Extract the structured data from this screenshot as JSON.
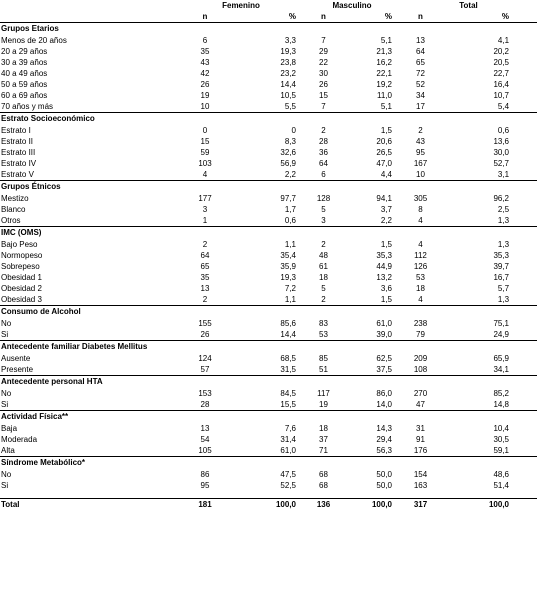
{
  "columns": {
    "groups": [
      "Femenino",
      "Masculino",
      "Total"
    ],
    "sub": [
      "n",
      "%",
      "n",
      "%",
      "n",
      "%"
    ]
  },
  "sections": [
    {
      "title": "Grupos Etarios",
      "rows": [
        {
          "label": "Menos de 20 años",
          "v": [
            "6",
            "3,3",
            "7",
            "5,1",
            "13",
            "4,1"
          ]
        },
        {
          "label": "20 a 29 años",
          "v": [
            "35",
            "19,3",
            "29",
            "21,3",
            "64",
            "20,2"
          ]
        },
        {
          "label": "30 a 39 años",
          "v": [
            "43",
            "23,8",
            "22",
            "16,2",
            "65",
            "20,5"
          ]
        },
        {
          "label": "40 a 49 años",
          "v": [
            "42",
            "23,2",
            "30",
            "22,1",
            "72",
            "22,7"
          ]
        },
        {
          "label": "50 a 59 años",
          "v": [
            "26",
            "14,4",
            "26",
            "19,2",
            "52",
            "16,4"
          ]
        },
        {
          "label": "60 a 69 años",
          "v": [
            "19",
            "10,5",
            "15",
            "11,0",
            "34",
            "10,7"
          ]
        },
        {
          "label": "70 años y más",
          "v": [
            "10",
            "5,5",
            "7",
            "5,1",
            "17",
            "5,4"
          ]
        }
      ]
    },
    {
      "title": "Estrato Socioeconómico",
      "rows": [
        {
          "label": "Estrato I",
          "v": [
            "0",
            "0",
            "2",
            "1,5",
            "2",
            "0,6"
          ]
        },
        {
          "label": "Estrato II",
          "v": [
            "15",
            "8,3",
            "28",
            "20,6",
            "43",
            "13,6"
          ]
        },
        {
          "label": "Estrato III",
          "v": [
            "59",
            "32,6",
            "36",
            "26,5",
            "95",
            "30,0"
          ]
        },
        {
          "label": "Estrato IV",
          "v": [
            "103",
            "56,9",
            "64",
            "47,0",
            "167",
            "52,7"
          ]
        },
        {
          "label": "Estrato V",
          "v": [
            "4",
            "2,2",
            "6",
            "4,4",
            "10",
            "3,1"
          ]
        }
      ]
    },
    {
      "title": "Grupos Étnicos",
      "rows": [
        {
          "label": "Mestizo",
          "v": [
            "177",
            "97,7",
            "128",
            "94,1",
            "305",
            "96,2"
          ]
        },
        {
          "label": "Blanco",
          "v": [
            "3",
            "1,7",
            "5",
            "3,7",
            "8",
            "2,5"
          ]
        },
        {
          "label": "Otros",
          "v": [
            "1",
            "0,6",
            "3",
            "2,2",
            "4",
            "1,3"
          ]
        }
      ]
    },
    {
      "title": "IMC (OMS)",
      "rows": [
        {
          "label": "Bajo Peso",
          "v": [
            "2",
            "1,1",
            "2",
            "1,5",
            "4",
            "1,3"
          ]
        },
        {
          "label": "Normopeso",
          "v": [
            "64",
            "35,4",
            "48",
            "35,3",
            "112",
            "35,3"
          ]
        },
        {
          "label": "Sobrepeso",
          "v": [
            "65",
            "35,9",
            "61",
            "44,9",
            "126",
            "39,7"
          ]
        },
        {
          "label": "Obesidad 1",
          "v": [
            "35",
            "19,3",
            "18",
            "13,2",
            "53",
            "16,7"
          ]
        },
        {
          "label": "Obesidad 2",
          "v": [
            "13",
            "7,2",
            "5",
            "3,6",
            "18",
            "5,7"
          ]
        },
        {
          "label": "Obesidad 3",
          "v": [
            "2",
            "1,1",
            "2",
            "1,5",
            "4",
            "1,3"
          ]
        }
      ]
    },
    {
      "title": "Consumo de Alcohol",
      "rows": [
        {
          "label": "No",
          "v": [
            "155",
            "85,6",
            "83",
            "61,0",
            "238",
            "75,1"
          ]
        },
        {
          "label": "Si",
          "v": [
            "26",
            "14,4",
            "53",
            "39,0",
            "79",
            "24,9"
          ]
        }
      ]
    },
    {
      "title": "Antecedente familiar Diabetes Mellitus",
      "rows": [
        {
          "label": "Ausente",
          "v": [
            "124",
            "68,5",
            "85",
            "62,5",
            "209",
            "65,9"
          ]
        },
        {
          "label": "Presente",
          "v": [
            "57",
            "31,5",
            "51",
            "37,5",
            "108",
            "34,1"
          ]
        }
      ]
    },
    {
      "title": "Antecedente personal HTA",
      "rows": [
        {
          "label": "No",
          "v": [
            "153",
            "84,5",
            "117",
            "86,0",
            "270",
            "85,2"
          ]
        },
        {
          "label": "Si",
          "v": [
            "28",
            "15,5",
            "19",
            "14,0",
            "47",
            "14,8"
          ]
        }
      ]
    },
    {
      "title": "Actividad Física**",
      "rows": [
        {
          "label": "Baja",
          "v": [
            "13",
            "7,6",
            "18",
            "14,3",
            "31",
            "10,4"
          ]
        },
        {
          "label": "Moderada",
          "v": [
            "54",
            "31,4",
            "37",
            "29,4",
            "91",
            "30,5"
          ]
        },
        {
          "label": "Alta",
          "v": [
            "105",
            "61,0",
            "71",
            "56,3",
            "176",
            "59,1"
          ]
        }
      ]
    },
    {
      "title": "Síndrome Metabólico*",
      "rows": [
        {
          "label": "No",
          "v": [
            "86",
            "47,5",
            "68",
            "50,0",
            "154",
            "48,6"
          ]
        },
        {
          "label": "Si",
          "v": [
            "95",
            "52,5",
            "68",
            "50,0",
            "163",
            "51,4"
          ]
        }
      ]
    }
  ],
  "total": {
    "label": "Total",
    "v": [
      "181",
      "100,0",
      "136",
      "100,0",
      "317",
      "100,0"
    ]
  }
}
